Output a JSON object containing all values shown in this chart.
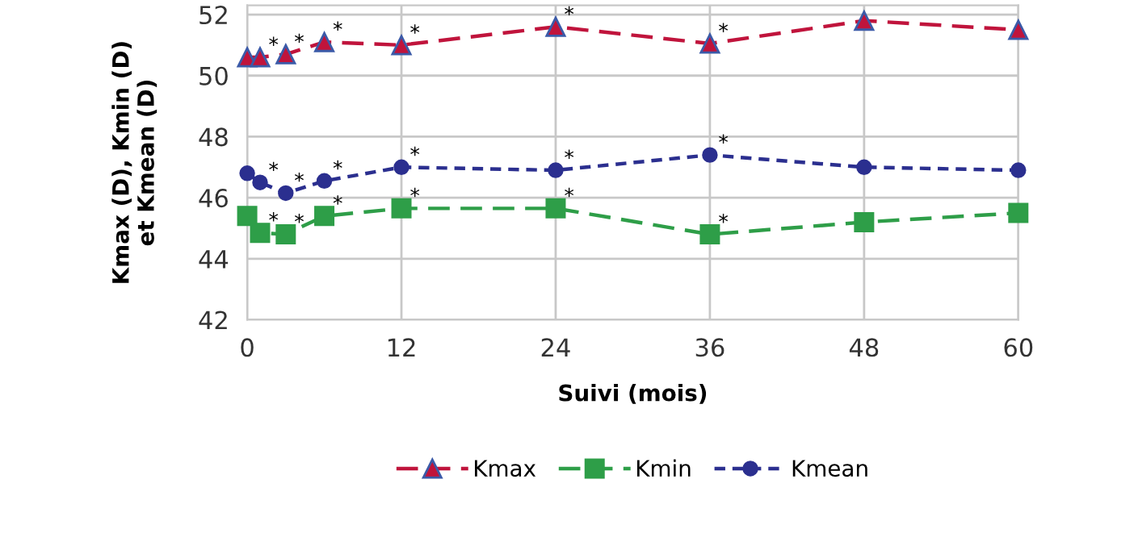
{
  "chart_data": {
    "type": "line",
    "xlabel": "Suivi (mois)",
    "ylabel": "Kmax (D), Kmin (D)\net Kmean (D)",
    "x": [
      0,
      1,
      3,
      6,
      12,
      24,
      36,
      48,
      60
    ],
    "xlim": [
      0,
      60
    ],
    "xticks": [
      0,
      12,
      24,
      36,
      48,
      60
    ],
    "ylim": [
      42,
      52.3
    ],
    "yticks": [
      42,
      44,
      46,
      48,
      50,
      52
    ],
    "grid": true,
    "legend": "bottom",
    "series": [
      {
        "name": "Kmax",
        "color": "#c0143c",
        "marker": "triangle",
        "line_style": "dashed",
        "values": [
          50.6,
          50.6,
          50.7,
          51.1,
          51.0,
          51.6,
          51.05,
          51.8,
          51.5
        ]
      },
      {
        "name": "Kmin",
        "color": "#2e9e48",
        "marker": "square",
        "line_style": "dashed",
        "values": [
          45.4,
          44.85,
          44.8,
          45.4,
          45.65,
          45.65,
          44.8,
          45.2,
          45.5
        ]
      },
      {
        "name": "Kmean",
        "color": "#2b2f8f",
        "marker": "circle",
        "line_style": "dotted",
        "values": [
          46.8,
          46.5,
          46.15,
          46.55,
          47.0,
          46.9,
          47.4,
          47.0,
          46.9
        ]
      }
    ],
    "annotations": [
      {
        "text": "*",
        "x": 1,
        "y": 50.6
      },
      {
        "text": "*",
        "x": 3,
        "y": 50.7
      },
      {
        "text": "*",
        "x": 6,
        "y": 51.1
      },
      {
        "text": "*",
        "x": 12,
        "y": 51.0
      },
      {
        "text": "*",
        "x": 24,
        "y": 51.6
      },
      {
        "text": "*",
        "x": 36,
        "y": 51.05
      },
      {
        "text": "*",
        "x": 1,
        "y": 46.5
      },
      {
        "text": "*",
        "x": 3,
        "y": 46.15
      },
      {
        "text": "*",
        "x": 6,
        "y": 46.55
      },
      {
        "text": "*",
        "x": 12,
        "y": 47.0
      },
      {
        "text": "*",
        "x": 24,
        "y": 46.9
      },
      {
        "text": "*",
        "x": 36,
        "y": 47.4
      },
      {
        "text": "*",
        "x": 1,
        "y": 44.85
      },
      {
        "text": "*",
        "x": 3,
        "y": 44.8
      },
      {
        "text": "*",
        "x": 6,
        "y": 45.4
      },
      {
        "text": "*",
        "x": 12,
        "y": 45.65
      },
      {
        "text": "*",
        "x": 24,
        "y": 45.65
      },
      {
        "text": "*",
        "x": 36,
        "y": 44.8
      }
    ]
  }
}
